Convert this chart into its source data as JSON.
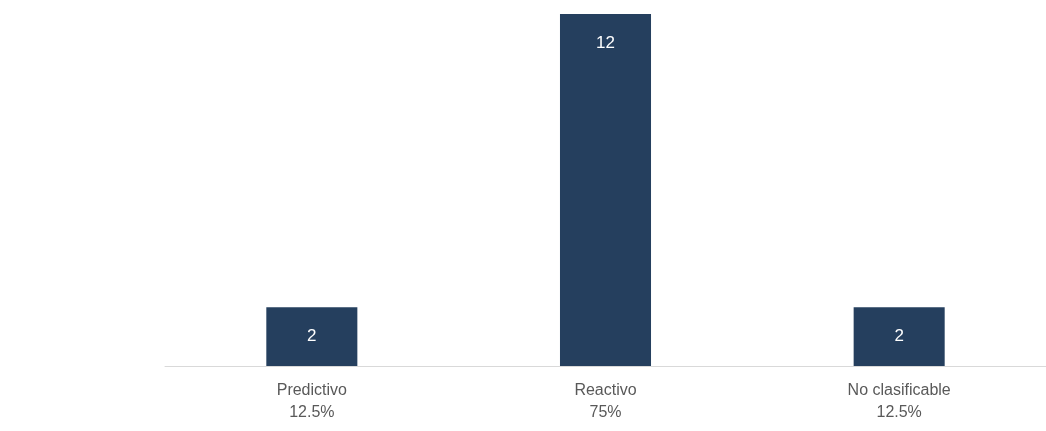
{
  "chart_data": {
    "type": "bar",
    "categories": [
      "Predictivo\n12.5%",
      "Reactivo\n75%",
      "No clasificable\n12.5%"
    ],
    "values": [
      2,
      12,
      2
    ],
    "color": "#253f5e",
    "data_labels": true
  }
}
